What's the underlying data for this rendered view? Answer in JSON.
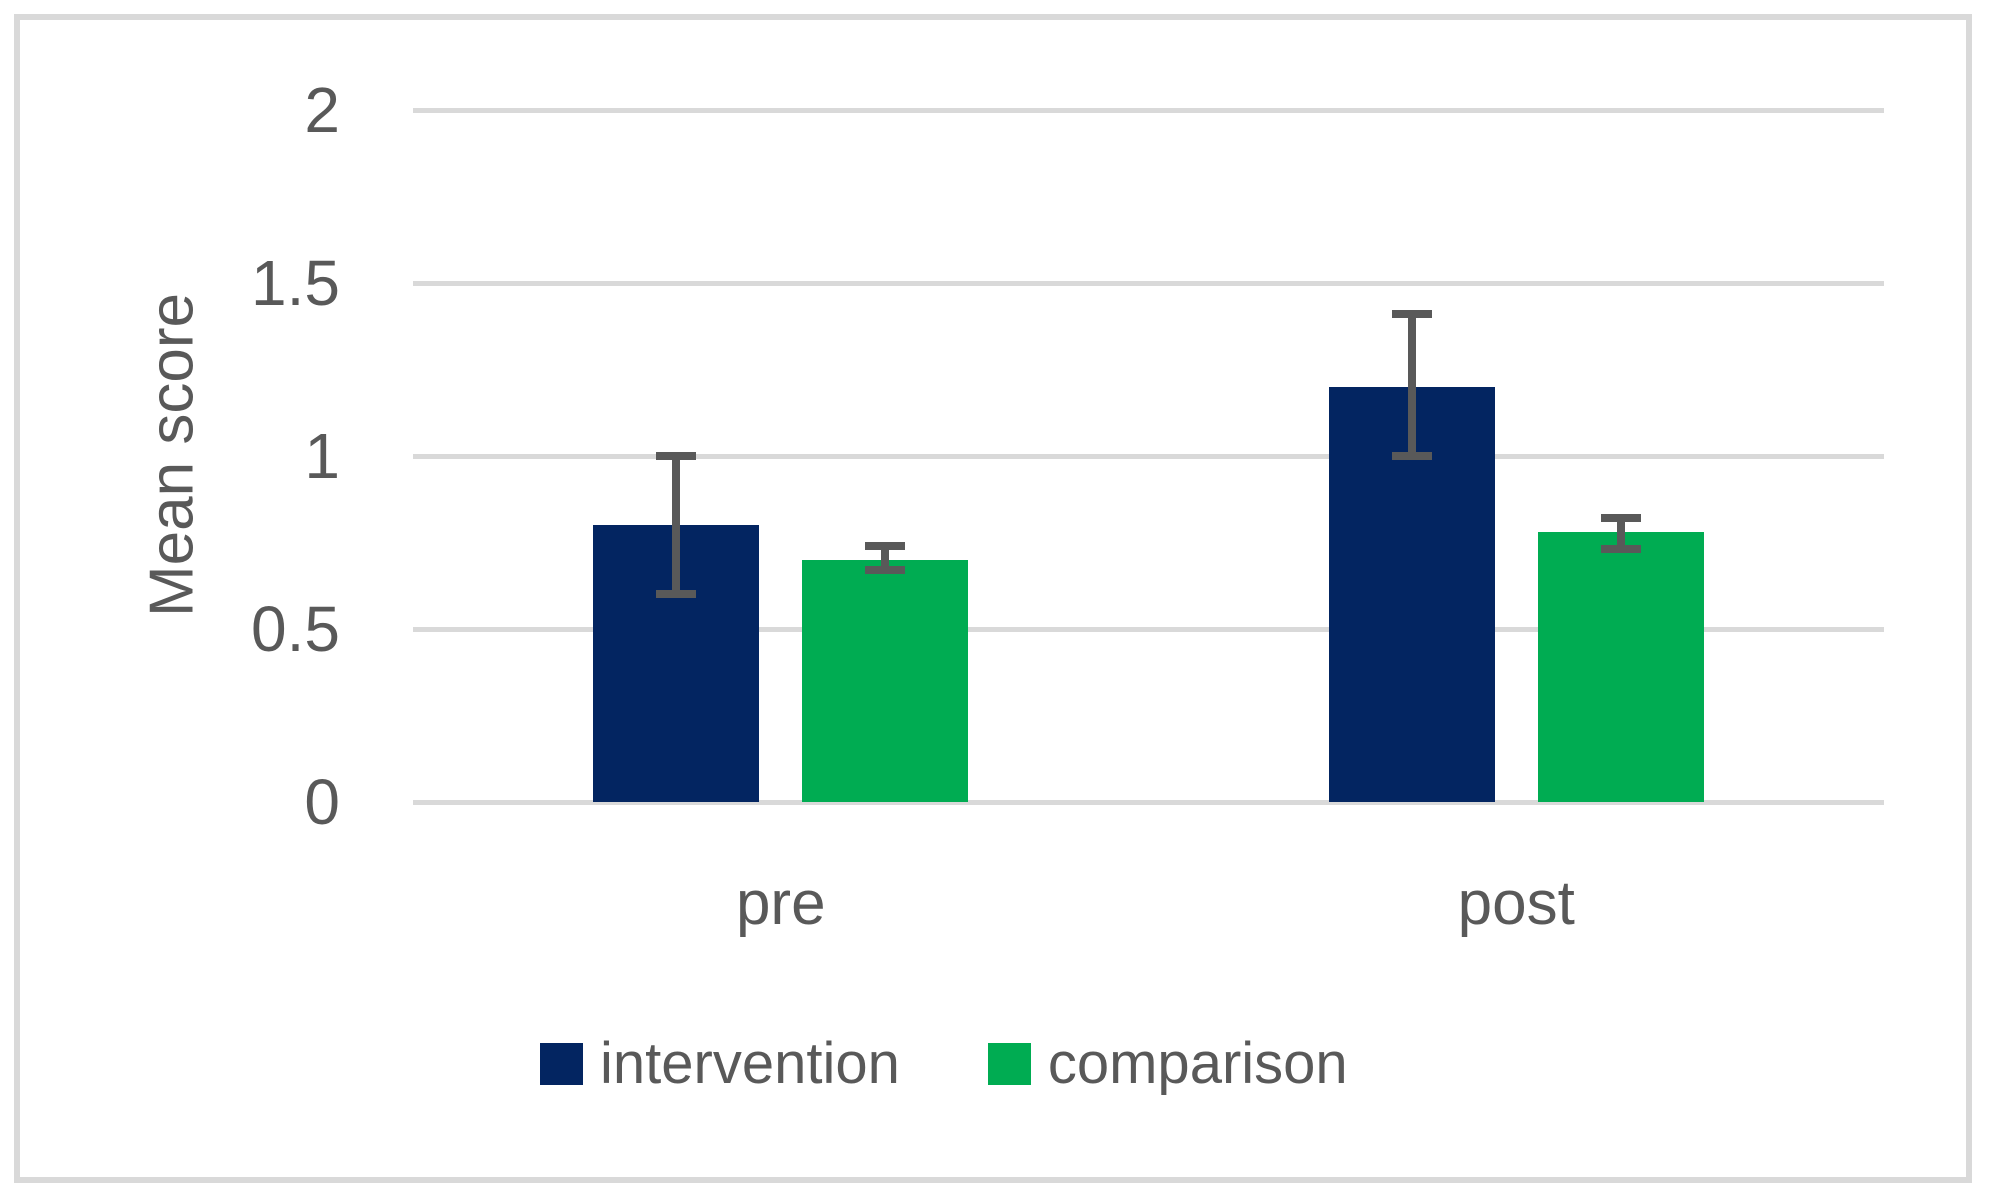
{
  "chart_data": {
    "type": "bar",
    "title": "",
    "xlabel": "",
    "ylabel": "Mean score",
    "categories": [
      "pre",
      "post"
    ],
    "series": [
      {
        "name": "intervention",
        "color": "#032561",
        "values": [
          0.8,
          1.2
        ],
        "error_low": [
          0.6,
          1.0
        ],
        "error_high": [
          1.0,
          1.41
        ]
      },
      {
        "name": "comparison",
        "color": "#00ac52",
        "values": [
          0.7,
          0.78
        ],
        "error_low": [
          0.67,
          0.73
        ],
        "error_high": [
          0.74,
          0.82
        ]
      }
    ],
    "y_ticks": [
      0,
      0.5,
      1,
      1.5,
      2
    ],
    "y_tick_labels": [
      "0",
      "0.5",
      "1",
      "1.5",
      "2"
    ],
    "ylim": [
      0,
      2
    ],
    "grid": true,
    "legend_position": "bottom",
    "colors": {
      "gridline": "#d9d9d9",
      "border": "#d9d9d9",
      "text": "#595959",
      "error_bar": "#595959",
      "background": "#ffffff"
    }
  }
}
